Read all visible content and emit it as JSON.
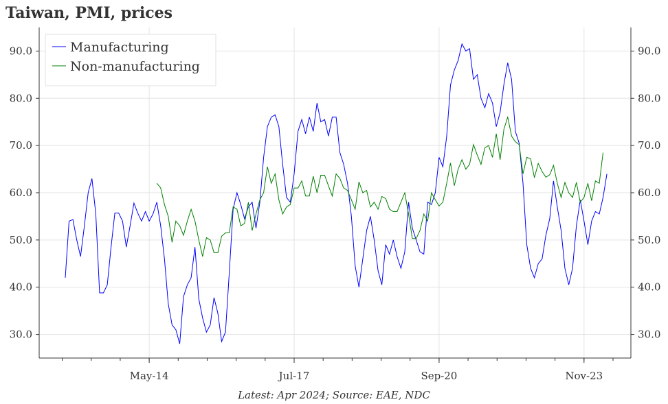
{
  "chart_data": {
    "type": "line",
    "title": "Taiwan, PMI, prices",
    "footnote": "Latest: Apr 2024; Source: EAE, NDC",
    "xlabel": "",
    "ylabel": "",
    "ylim": [
      25,
      95
    ],
    "yticks": [
      "30.0",
      "40.0",
      "50.0",
      "60.0",
      "70.0",
      "80.0",
      "90.0"
    ],
    "xticks": [
      "May-14",
      "Jul-17",
      "Sep-20",
      "Nov-23"
    ],
    "grid": true,
    "legend": "top-left",
    "frequency": "monthly",
    "series": [
      {
        "name": "Manufacturing",
        "color": "#0000ff",
        "x_start": "2012-07",
        "values": [
          42,
          54,
          54.3,
          50,
          46.5,
          53,
          60,
          63,
          55.5,
          38.8,
          38.8,
          40.5,
          48.5,
          55.7,
          55.7,
          54,
          48.5,
          53,
          57.8,
          55.7,
          54,
          56,
          54,
          55.5,
          58,
          53,
          46,
          36.5,
          32,
          31,
          28,
          38,
          40.5,
          42,
          48.5,
          37.5,
          33.5,
          30.5,
          32,
          37.8,
          34.5,
          28.5,
          30.5,
          43,
          56.5,
          60,
          57.5,
          54.5,
          57,
          58,
          52.5,
          58,
          67.5,
          74,
          76,
          76.5,
          74,
          66,
          59,
          58,
          64,
          73,
          75.5,
          72.5,
          76,
          73,
          79,
          75,
          75.5,
          72,
          76,
          76,
          68.5,
          66,
          62,
          55,
          44.5,
          40,
          46,
          52,
          55,
          50,
          43.5,
          40.5,
          49,
          47,
          50,
          46.5,
          44,
          47.5,
          58,
          52.5,
          50,
          47.5,
          47,
          58,
          57.5,
          60,
          67.5,
          65.5,
          72,
          82.8,
          86,
          88,
          91.5,
          90,
          90.5,
          84,
          85,
          80,
          78,
          81,
          79,
          74,
          77,
          83,
          87.5,
          84,
          73,
          70.5,
          62,
          49,
          44,
          42,
          45,
          46,
          51,
          54.5,
          62.5,
          57,
          52,
          44,
          40.5,
          44,
          53,
          58.5,
          54,
          49,
          54,
          56,
          55.5,
          59,
          64
        ]
      },
      {
        "name": "Non-manufacturing",
        "color": "#008000",
        "x_start": "2014-07",
        "values": [
          62,
          61,
          57.5,
          55,
          49.5,
          54,
          53,
          51,
          54,
          56.5,
          54,
          50,
          46.5,
          50.5,
          50,
          47.3,
          47.3,
          50.8,
          51.5,
          51.5,
          57,
          56.5,
          53,
          53.5,
          58,
          52,
          55.5,
          58.5,
          60,
          65.5,
          62,
          64,
          58.5,
          55.5,
          57,
          57.5,
          61,
          61,
          62.5,
          59.3,
          59.3,
          63.5,
          60,
          63.7,
          63.7,
          61.5,
          59.3,
          64,
          63,
          61,
          60.5,
          58.5,
          56.5,
          62.3,
          60,
          60.5,
          57,
          58,
          56.5,
          59.2,
          58.8,
          56.5,
          56,
          56,
          58,
          60,
          55.5,
          50.3,
          50.3,
          52,
          55.5,
          54,
          60,
          58.5,
          57.2,
          58,
          62,
          66.3,
          61.5,
          65,
          67,
          65,
          66,
          70.2,
          68,
          66,
          69.5,
          70,
          67.5,
          72.5,
          67,
          73.5,
          76,
          72,
          70.8,
          70.2,
          64,
          67.5,
          67.2,
          63.2,
          66.2,
          64.5,
          63.3,
          63.8,
          65.8,
          62,
          59,
          62.2,
          60,
          59,
          62.2,
          58,
          59,
          62,
          58.3,
          62.5,
          62,
          68.5
        ]
      }
    ]
  }
}
